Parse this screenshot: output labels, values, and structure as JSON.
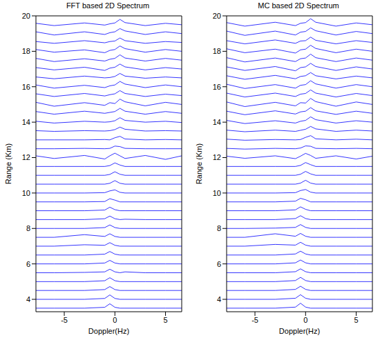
{
  "chart_data": [
    {
      "type": "line",
      "title": "FFT based 2D Spectrum",
      "x_label": "Doppler(Hz)",
      "y_label": "Range (Km)",
      "color": "#0000ff",
      "x": [
        -7.8,
        -6,
        -3,
        -1,
        -0.5,
        0,
        0.5,
        1,
        3,
        5,
        6.6
      ],
      "xlim": [
        -7.8,
        6.6
      ],
      "xticks": [
        -5,
        0,
        5
      ],
      "ylim": [
        3.3,
        20
      ],
      "yticks": [
        4,
        6,
        8,
        10,
        12,
        14,
        16,
        18,
        20
      ],
      "series": [
        {
          "values": [
            3.5,
            3.5,
            3.5,
            3.55,
            3.75,
            3.55,
            3.5,
            3.5,
            3.5,
            3.5,
            3.5
          ]
        },
        {
          "values": [
            4,
            4,
            4,
            4.05,
            4.25,
            4.05,
            4,
            4,
            4,
            4,
            4
          ]
        },
        {
          "values": [
            4.5,
            4.5,
            4.5,
            4.55,
            4.72,
            4.55,
            4.5,
            4.5,
            4.5,
            4.5,
            4.5
          ]
        },
        {
          "values": [
            5,
            5,
            5,
            5.05,
            5.22,
            5.05,
            5,
            5,
            5,
            5,
            5
          ]
        },
        {
          "values": [
            5.5,
            5.5,
            5.52,
            5.55,
            5.7,
            5.55,
            5.5,
            5.55,
            5.5,
            5.5,
            5.5
          ]
        },
        {
          "values": [
            6,
            6,
            6,
            6.05,
            6.2,
            6.05,
            6,
            6,
            6,
            6,
            6
          ]
        },
        {
          "values": [
            6.5,
            6.5,
            6.5,
            6.55,
            6.7,
            6.55,
            6.5,
            6.5,
            6.5,
            6.5,
            6.5
          ]
        },
        {
          "values": [
            7,
            7,
            7.08,
            7.05,
            7.2,
            7.05,
            7,
            7,
            7,
            7,
            7
          ]
        },
        {
          "values": [
            7.5,
            7.5,
            7.65,
            7.55,
            7.7,
            7.55,
            7.5,
            7.5,
            7.5,
            7.5,
            7.5
          ]
        },
        {
          "values": [
            8,
            8,
            8,
            8.05,
            8.2,
            8.05,
            8,
            8,
            8,
            8,
            8
          ]
        },
        {
          "values": [
            8.5,
            8.5,
            8.5,
            8.55,
            8.7,
            8.55,
            8.5,
            8.52,
            8.5,
            8.5,
            8.5
          ]
        },
        {
          "values": [
            9,
            9,
            9,
            9.04,
            9.2,
            9.06,
            9,
            9,
            9,
            9,
            9
          ]
        },
        {
          "values": [
            9.5,
            9.5,
            9.5,
            9.52,
            9.68,
            9.6,
            9.5,
            9.5,
            9.5,
            9.5,
            9.5
          ]
        },
        {
          "values": [
            10,
            10,
            10,
            10.02,
            10.12,
            10.18,
            10.04,
            10,
            10,
            10,
            10
          ]
        },
        {
          "values": [
            10.5,
            10.5,
            10.5,
            10.5,
            10.55,
            10.7,
            10.55,
            10.5,
            10.5,
            10.5,
            10.5
          ]
        },
        {
          "values": [
            11,
            11,
            11,
            11,
            11.05,
            11.2,
            11.06,
            11,
            11,
            11,
            11
          ]
        },
        {
          "values": [
            11.5,
            11.5,
            11.5,
            11.5,
            11.55,
            11.7,
            11.58,
            11.5,
            11.5,
            11.5,
            11.5
          ]
        },
        {
          "values": [
            12.1,
            11.95,
            12.12,
            11.92,
            12.1,
            12.25,
            12.1,
            11.95,
            12.12,
            11.9,
            12.1
          ]
        },
        {
          "values": [
            12.5,
            12.5,
            12.52,
            12.5,
            12.52,
            12.65,
            12.62,
            12.52,
            12.5,
            12.5,
            12.5
          ]
        },
        {
          "values": [
            13,
            13,
            13,
            13.02,
            13,
            13.12,
            13.2,
            13.05,
            13,
            13.02,
            13
          ]
        },
        {
          "values": [
            13.52,
            13.48,
            13.52,
            13.5,
            13.52,
            13.58,
            13.72,
            13.6,
            13.5,
            13.52,
            13.5
          ]
        },
        {
          "values": [
            14.05,
            13.95,
            14.05,
            14,
            14.02,
            14.08,
            14.25,
            14.1,
            14,
            14.05,
            13.98
          ]
        },
        {
          "values": [
            14.6,
            14.45,
            14.62,
            14.5,
            14.55,
            14.6,
            14.78,
            14.62,
            14.45,
            14.6,
            14.5
          ]
        },
        {
          "values": [
            15.12,
            14.9,
            15.1,
            14.95,
            15.1,
            15.05,
            15.3,
            15.15,
            14.92,
            15.12,
            15
          ]
        },
        {
          "values": [
            15.6,
            15.45,
            15.62,
            15.48,
            15.55,
            15.6,
            15.78,
            15.62,
            15.45,
            15.58,
            15.5
          ]
        },
        {
          "values": [
            16.1,
            15.92,
            16.08,
            15.95,
            16.05,
            16.1,
            16.3,
            16.15,
            15.95,
            16.1,
            16
          ]
        },
        {
          "values": [
            16.55,
            16.45,
            16.6,
            16.5,
            16.52,
            16.58,
            16.75,
            16.6,
            16.48,
            16.55,
            16.5
          ]
        },
        {
          "values": [
            17.08,
            16.95,
            17.1,
            16.92,
            17.05,
            17.1,
            17.28,
            17.12,
            16.95,
            17.08,
            17
          ]
        },
        {
          "values": [
            17.6,
            17.42,
            17.58,
            17.45,
            17.55,
            17.6,
            17.8,
            17.62,
            17.45,
            17.6,
            17.5
          ]
        },
        {
          "values": [
            18.1,
            17.95,
            18.08,
            17.92,
            18.05,
            18.1,
            18.3,
            18.15,
            17.95,
            18.1,
            18
          ]
        },
        {
          "values": [
            18.55,
            18.45,
            18.6,
            18.48,
            18.55,
            18.58,
            18.75,
            18.6,
            18.45,
            18.55,
            18.5
          ]
        },
        {
          "values": [
            19.1,
            18.92,
            19.1,
            18.95,
            19.05,
            19.1,
            19.28,
            19.15,
            18.95,
            19.1,
            19
          ]
        },
        {
          "values": [
            19.58,
            19.45,
            19.6,
            19.48,
            19.55,
            19.6,
            19.8,
            19.62,
            19.45,
            19.58,
            19.5
          ]
        }
      ]
    },
    {
      "type": "line",
      "title": "MC based 2D Spectrum",
      "x_label": "Doppler(Hz)",
      "y_label": "Range (Km)",
      "color": "#0000ff",
      "x": [
        -7.8,
        -6,
        -3,
        -1,
        -0.5,
        0,
        0.5,
        1,
        3,
        5,
        6.6
      ],
      "xlim": [
        -7.8,
        6.6
      ],
      "xticks": [
        -5,
        0,
        5
      ],
      "ylim": [
        3.3,
        20
      ],
      "yticks": [
        4,
        6,
        8,
        10,
        12,
        14,
        16,
        18,
        20
      ],
      "series": [
        {
          "values": [
            3.5,
            3.5,
            3.5,
            3.56,
            3.78,
            3.56,
            3.5,
            3.5,
            3.5,
            3.5,
            3.5
          ]
        },
        {
          "values": [
            4,
            4,
            4,
            4.06,
            4.26,
            4.06,
            4,
            4,
            4,
            4,
            4
          ]
        },
        {
          "values": [
            4.5,
            4.5,
            4.5,
            4.56,
            4.74,
            4.56,
            4.5,
            4.5,
            4.5,
            4.5,
            4.5
          ]
        },
        {
          "values": [
            5,
            5,
            5,
            5.06,
            5.24,
            5.06,
            5,
            5,
            5,
            5,
            5
          ]
        },
        {
          "values": [
            5.5,
            5.5,
            5.5,
            5.56,
            5.72,
            5.56,
            5.5,
            5.5,
            5.5,
            5.5,
            5.5
          ]
        },
        {
          "values": [
            6,
            6,
            6,
            6.06,
            6.22,
            6.06,
            6,
            6,
            6,
            6,
            6
          ]
        },
        {
          "values": [
            6.5,
            6.5,
            6.5,
            6.56,
            6.72,
            6.56,
            6.5,
            6.5,
            6.5,
            6.5,
            6.5
          ]
        },
        {
          "values": [
            7,
            7,
            7.1,
            7.06,
            7.22,
            7.06,
            7,
            7,
            7,
            7,
            7
          ]
        },
        {
          "values": [
            7.5,
            7.5,
            7.7,
            7.56,
            7.72,
            7.56,
            7.5,
            7.5,
            7.5,
            7.5,
            7.5
          ]
        },
        {
          "values": [
            8,
            8,
            8.02,
            8.06,
            8.22,
            8.06,
            8,
            8,
            8,
            8,
            8
          ]
        },
        {
          "values": [
            8.5,
            8.5,
            8.5,
            8.56,
            8.72,
            8.56,
            8.5,
            8.5,
            8.5,
            8.5,
            8.5
          ]
        },
        {
          "values": [
            9,
            9,
            9,
            9.05,
            9.22,
            9.08,
            9,
            9,
            9,
            9,
            9
          ]
        },
        {
          "values": [
            9.5,
            9.5,
            9.5,
            9.54,
            9.7,
            9.62,
            9.5,
            9.5,
            9.5,
            9.5,
            9.5
          ]
        },
        {
          "values": [
            10,
            10,
            10,
            10.02,
            10.14,
            10.2,
            10.05,
            10,
            10,
            10,
            10
          ]
        },
        {
          "values": [
            10.5,
            10.5,
            10.5,
            10.5,
            10.56,
            10.72,
            10.56,
            10.5,
            10.5,
            10.5,
            10.5
          ]
        },
        {
          "values": [
            11,
            11,
            11,
            11,
            11.06,
            11.22,
            11.08,
            11,
            11,
            11,
            11
          ]
        },
        {
          "values": [
            11.5,
            11.5,
            11.5,
            11.5,
            11.56,
            11.72,
            11.6,
            11.5,
            11.5,
            11.5,
            11.5
          ]
        },
        {
          "values": [
            12.08,
            11.96,
            12.1,
            11.94,
            12.08,
            12.24,
            12.12,
            11.96,
            12.1,
            11.92,
            12.08
          ]
        },
        {
          "values": [
            12.52,
            12.48,
            12.52,
            12.5,
            12.54,
            12.66,
            12.64,
            12.52,
            12.5,
            12.52,
            12.5
          ]
        },
        {
          "values": [
            13.04,
            12.98,
            13.02,
            13,
            13.02,
            13.14,
            13.24,
            13.06,
            13,
            13.04,
            13
          ]
        },
        {
          "values": [
            13.55,
            13.46,
            13.55,
            13.48,
            13.54,
            13.6,
            13.76,
            13.62,
            13.48,
            13.55,
            13.5
          ]
        },
        {
          "values": [
            14.1,
            13.92,
            14.08,
            13.95,
            14.05,
            14.1,
            14.3,
            14.14,
            13.95,
            14.08,
            14
          ]
        },
        {
          "values": [
            14.62,
            14.42,
            14.64,
            14.46,
            14.58,
            14.62,
            14.82,
            14.64,
            14.44,
            14.62,
            14.5
          ]
        },
        {
          "values": [
            15.14,
            14.88,
            15.12,
            14.92,
            15.1,
            15.08,
            15.34,
            15.16,
            14.9,
            15.14,
            15
          ]
        },
        {
          "values": [
            15.64,
            15.42,
            15.64,
            15.45,
            15.58,
            15.62,
            15.82,
            15.64,
            15.42,
            15.62,
            15.5
          ]
        },
        {
          "values": [
            16.14,
            15.9,
            16.12,
            15.92,
            16.08,
            16.12,
            16.34,
            16.16,
            15.92,
            16.12,
            16
          ]
        },
        {
          "values": [
            16.62,
            16.42,
            16.64,
            16.45,
            16.58,
            16.62,
            16.8,
            16.62,
            16.44,
            16.6,
            16.5
          ]
        },
        {
          "values": [
            17.12,
            16.92,
            17.14,
            16.9,
            17.08,
            17.12,
            17.32,
            17.14,
            16.92,
            17.12,
            17
          ]
        },
        {
          "values": [
            17.64,
            17.4,
            17.62,
            17.42,
            17.58,
            17.62,
            17.84,
            17.64,
            17.42,
            17.62,
            17.5
          ]
        },
        {
          "values": [
            18.14,
            17.92,
            18.12,
            17.9,
            18.08,
            18.12,
            18.34,
            18.16,
            17.92,
            18.12,
            18
          ]
        },
        {
          "values": [
            18.6,
            18.42,
            18.64,
            18.45,
            18.58,
            18.6,
            18.8,
            18.62,
            18.42,
            18.6,
            18.5
          ]
        },
        {
          "values": [
            19.14,
            18.9,
            19.14,
            18.92,
            19.08,
            19.12,
            19.32,
            19.16,
            18.92,
            19.12,
            19
          ]
        },
        {
          "values": [
            19.62,
            19.42,
            19.64,
            19.45,
            19.58,
            19.62,
            19.84,
            19.64,
            19.42,
            19.6,
            19.5
          ]
        }
      ]
    }
  ]
}
